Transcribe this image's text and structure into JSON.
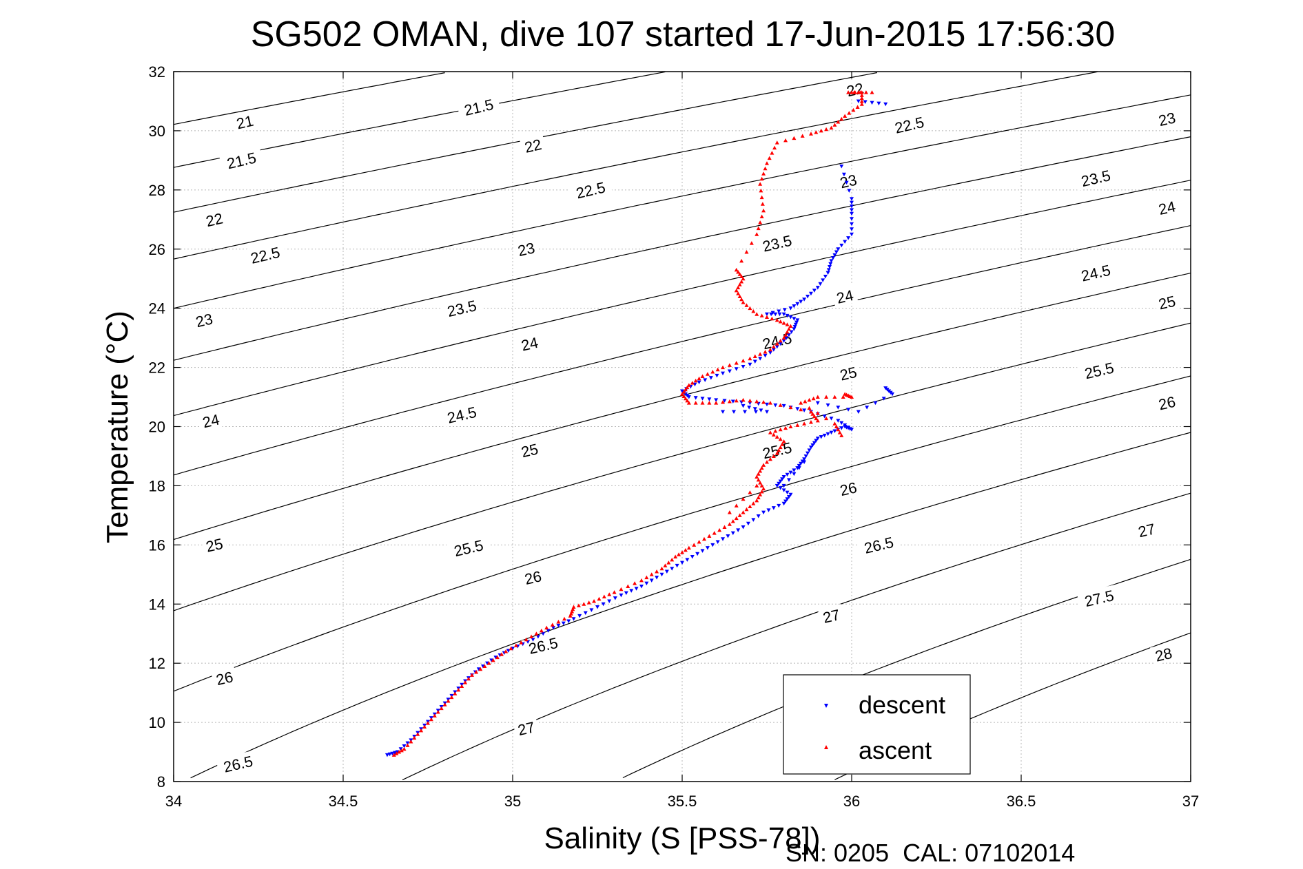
{
  "chart_data": {
    "type": "scatter",
    "title": "SG502 OMAN, dive 107 started 17-Jun-2015 17:56:30",
    "xlabel": "Salinity (S [PSS-78])",
    "ylabel": "Temperature (°C)",
    "xlim": [
      34,
      37
    ],
    "ylim": [
      8,
      32
    ],
    "xticks": [
      "34",
      "34.5",
      "35",
      "35.5",
      "36",
      "36.5",
      "37"
    ],
    "yticks": [
      "8",
      "10",
      "12",
      "14",
      "16",
      "18",
      "20",
      "22",
      "24",
      "26",
      "28",
      "30",
      "32"
    ],
    "grid": true,
    "legend": {
      "position": "bottom-right",
      "entries": [
        "descent",
        "ascent"
      ]
    },
    "contours": {
      "description": "sigma-theta isopycnals",
      "levels": [
        21,
        21.5,
        22,
        22.5,
        23,
        23.5,
        24,
        24.5,
        25,
        25.5,
        26,
        26.5,
        27,
        27.5,
        28
      ],
      "labels": [
        {
          "text": "21",
          "s": 34.21,
          "t": 30.3
        },
        {
          "text": "21.5",
          "s": 34.2,
          "t": 29.0
        },
        {
          "text": "22",
          "s": 34.12,
          "t": 27.0
        },
        {
          "text": "22.5",
          "s": 34.27,
          "t": 25.8
        },
        {
          "text": "23",
          "s": 34.09,
          "t": 23.6
        },
        {
          "text": "24",
          "s": 34.11,
          "t": 20.2
        },
        {
          "text": "25",
          "s": 34.12,
          "t": 16.0
        },
        {
          "text": "26",
          "s": 34.15,
          "t": 11.5
        },
        {
          "text": "26.5",
          "s": 34.19,
          "t": 8.6
        },
        {
          "text": "21.5",
          "s": 34.9,
          "t": 30.8
        },
        {
          "text": "22",
          "s": 35.06,
          "t": 29.5
        },
        {
          "text": "22.5",
          "s": 35.23,
          "t": 28.0
        },
        {
          "text": "23",
          "s": 35.04,
          "t": 26.0
        },
        {
          "text": "23.5",
          "s": 34.85,
          "t": 24.0
        },
        {
          "text": "24",
          "s": 35.05,
          "t": 22.8
        },
        {
          "text": "24.5",
          "s": 34.85,
          "t": 20.4
        },
        {
          "text": "25",
          "s": 35.05,
          "t": 19.2
        },
        {
          "text": "25.5",
          "s": 34.87,
          "t": 15.9
        },
        {
          "text": "26",
          "s": 35.06,
          "t": 14.9
        },
        {
          "text": "26.5",
          "s": 35.09,
          "t": 12.6
        },
        {
          "text": "27",
          "s": 35.04,
          "t": 9.8
        },
        {
          "text": "23.5",
          "s": 35.78,
          "t": 26.2
        },
        {
          "text": "24",
          "s": 35.98,
          "t": 24.4
        },
        {
          "text": "24.5",
          "s": 35.78,
          "t": 22.9
        },
        {
          "text": "25",
          "s": 35.99,
          "t": 21.8
        },
        {
          "text": "25.5",
          "s": 35.78,
          "t": 19.2
        },
        {
          "text": "26",
          "s": 35.99,
          "t": 17.9
        },
        {
          "text": "26.5",
          "s": 36.08,
          "t": 16.0
        },
        {
          "text": "27",
          "s": 35.94,
          "t": 13.6
        },
        {
          "text": "23",
          "s": 35.99,
          "t": 28.3
        },
        {
          "text": "22.5",
          "s": 36.17,
          "t": 30.2
        },
        {
          "text": "22",
          "s": 36.01,
          "t": 31.4
        },
        {
          "text": "23",
          "s": 36.93,
          "t": 30.4
        },
        {
          "text": "23.5",
          "s": 36.72,
          "t": 28.4
        },
        {
          "text": "24",
          "s": 36.93,
          "t": 27.4
        },
        {
          "text": "24.5",
          "s": 36.72,
          "t": 25.2
        },
        {
          "text": "25",
          "s": 36.93,
          "t": 24.2
        },
        {
          "text": "25.5",
          "s": 36.73,
          "t": 21.9
        },
        {
          "text": "26",
          "s": 36.93,
          "t": 20.8
        },
        {
          "text": "27",
          "s": 36.87,
          "t": 16.5
        },
        {
          "text": "27.5",
          "s": 36.73,
          "t": 14.2
        },
        {
          "text": "28",
          "s": 36.92,
          "t": 12.3
        }
      ]
    },
    "series": [
      {
        "name": "descent",
        "color": "#0000ff",
        "marker": "triangle-down",
        "points": [
          [
            34.63,
            8.9
          ],
          [
            34.66,
            9.0
          ],
          [
            34.7,
            9.4
          ],
          [
            34.74,
            9.9
          ],
          [
            34.78,
            10.4
          ],
          [
            34.82,
            10.9
          ],
          [
            34.86,
            11.4
          ],
          [
            34.9,
            11.8
          ],
          [
            34.95,
            12.2
          ],
          [
            35.0,
            12.5
          ],
          [
            35.06,
            12.8
          ],
          [
            35.12,
            13.2
          ],
          [
            35.18,
            13.5
          ],
          [
            35.25,
            13.9
          ],
          [
            35.32,
            14.3
          ],
          [
            35.38,
            14.6
          ],
          [
            35.44,
            15.0
          ],
          [
            35.5,
            15.4
          ],
          [
            35.56,
            15.8
          ],
          [
            35.62,
            16.2
          ],
          [
            35.68,
            16.6
          ],
          [
            35.74,
            17.1
          ],
          [
            35.8,
            17.4
          ],
          [
            35.82,
            17.7
          ],
          [
            35.78,
            18.0
          ],
          [
            35.8,
            18.3
          ],
          [
            35.84,
            18.6
          ],
          [
            35.86,
            18.9
          ],
          [
            35.88,
            19.3
          ],
          [
            35.9,
            19.6
          ],
          [
            35.94,
            19.8
          ],
          [
            35.98,
            20.0
          ],
          [
            36.0,
            19.9
          ],
          [
            35.96,
            20.2
          ],
          [
            35.88,
            20.5
          ],
          [
            35.8,
            20.7
          ],
          [
            35.7,
            20.8
          ],
          [
            35.6,
            20.9
          ],
          [
            35.52,
            21.0
          ],
          [
            35.5,
            21.2
          ],
          [
            35.55,
            21.5
          ],
          [
            35.62,
            21.8
          ],
          [
            35.7,
            22.1
          ],
          [
            35.76,
            22.5
          ],
          [
            35.8,
            22.9
          ],
          [
            35.83,
            23.3
          ],
          [
            35.84,
            23.6
          ],
          [
            35.8,
            23.8
          ],
          [
            35.75,
            23.8
          ],
          [
            35.82,
            24.0
          ],
          [
            35.86,
            24.3
          ],
          [
            35.9,
            24.7
          ],
          [
            35.93,
            25.2
          ],
          [
            35.94,
            25.6
          ],
          [
            35.96,
            26.0
          ],
          [
            36.0,
            26.5
          ],
          [
            36.0,
            27.2
          ],
          [
            36.0,
            27.7
          ],
          [
            35.97,
            28.8
          ],
          [
            36.02,
            31.0
          ],
          [
            36.1,
            30.9
          ],
          [
            36.1,
            21.3
          ],
          [
            36.12,
            21.1
          ],
          [
            36.02,
            20.5
          ],
          [
            35.9,
            20.8
          ],
          [
            35.62,
            20.5
          ],
          [
            35.75,
            20.5
          ],
          [
            35.68,
            20.7
          ],
          [
            35.86,
            18.8
          ],
          [
            35.8,
            18.0
          ]
        ]
      },
      {
        "name": "ascent",
        "color": "#ff0000",
        "marker": "triangle-up",
        "points": [
          [
            34.65,
            8.9
          ],
          [
            34.68,
            9.1
          ],
          [
            34.72,
            9.6
          ],
          [
            34.76,
            10.1
          ],
          [
            34.8,
            10.6
          ],
          [
            34.84,
            11.1
          ],
          [
            34.88,
            11.6
          ],
          [
            34.93,
            12.0
          ],
          [
            34.98,
            12.4
          ],
          [
            35.04,
            12.8
          ],
          [
            35.1,
            13.2
          ],
          [
            35.17,
            13.6
          ],
          [
            35.18,
            13.9
          ],
          [
            35.24,
            14.1
          ],
          [
            35.3,
            14.4
          ],
          [
            35.38,
            14.8
          ],
          [
            35.44,
            15.2
          ],
          [
            35.48,
            15.6
          ],
          [
            35.52,
            15.9
          ],
          [
            35.58,
            16.3
          ],
          [
            35.64,
            16.7
          ],
          [
            35.68,
            17.1
          ],
          [
            35.72,
            17.5
          ],
          [
            35.74,
            17.9
          ],
          [
            35.72,
            18.3
          ],
          [
            35.74,
            18.7
          ],
          [
            35.78,
            19.1
          ],
          [
            35.8,
            19.5
          ],
          [
            35.76,
            19.8
          ],
          [
            35.82,
            20.0
          ],
          [
            35.9,
            20.2
          ],
          [
            35.88,
            20.5
          ],
          [
            35.76,
            20.8
          ],
          [
            35.68,
            20.9
          ],
          [
            35.6,
            20.8
          ],
          [
            35.52,
            20.8
          ],
          [
            35.5,
            21.1
          ],
          [
            35.52,
            21.4
          ],
          [
            35.56,
            21.7
          ],
          [
            35.62,
            22.0
          ],
          [
            35.7,
            22.3
          ],
          [
            35.76,
            22.6
          ],
          [
            35.8,
            23.0
          ],
          [
            35.82,
            23.4
          ],
          [
            35.78,
            23.6
          ],
          [
            35.72,
            23.8
          ],
          [
            35.68,
            24.2
          ],
          [
            35.66,
            24.6
          ],
          [
            35.68,
            25.0
          ],
          [
            35.66,
            25.3
          ],
          [
            35.72,
            26.5
          ],
          [
            35.74,
            27.3
          ],
          [
            35.73,
            28.2
          ],
          [
            35.75,
            28.9
          ],
          [
            35.78,
            29.6
          ],
          [
            35.88,
            29.9
          ],
          [
            35.94,
            30.1
          ],
          [
            35.98,
            30.5
          ],
          [
            36.03,
            30.9
          ],
          [
            36.03,
            31.3
          ],
          [
            35.99,
            31.3
          ],
          [
            36.06,
            31.3
          ],
          [
            35.98,
            21.1
          ],
          [
            36.0,
            21.0
          ],
          [
            35.9,
            21.0
          ],
          [
            35.85,
            20.8
          ],
          [
            35.95,
            20.1
          ],
          [
            35.97,
            19.7
          ],
          [
            35.72,
            18.0
          ],
          [
            35.64,
            17.1
          ]
        ]
      }
    ]
  },
  "footer": "SN: 0205  CAL: 07102014"
}
